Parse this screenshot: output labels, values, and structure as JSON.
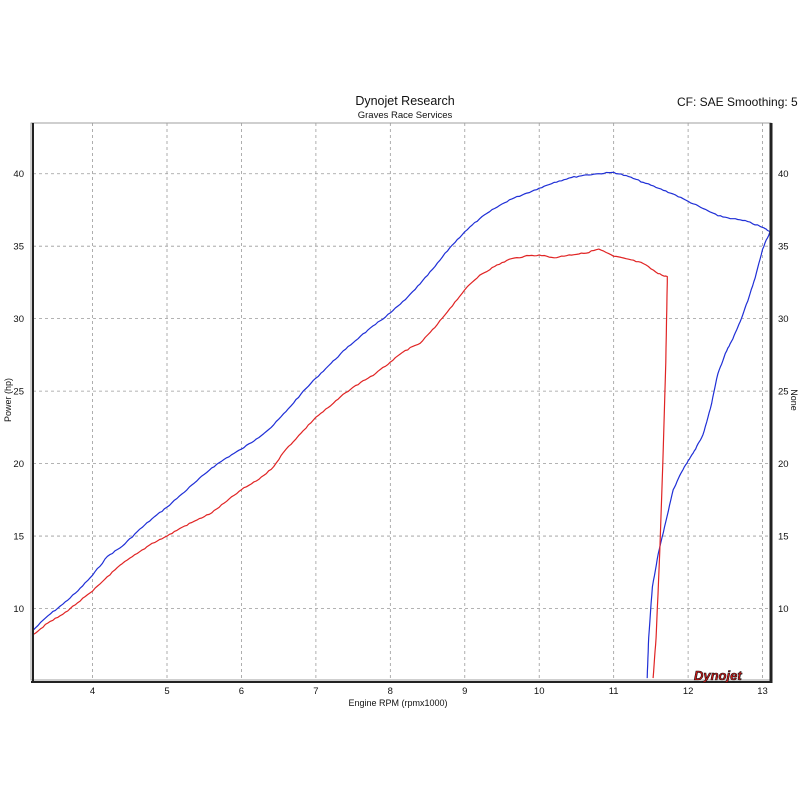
{
  "header": {
    "title": "Dynojet Research",
    "subtitle": "Graves Race Services",
    "settings": "CF: SAE Smoothing: 5"
  },
  "logo": {
    "text": "Dynojet"
  },
  "chart_data": {
    "type": "line",
    "title": "Dynojet Research",
    "subtitle": "Graves Race Services",
    "xlabel": "Engine RPM (rpmx1000)",
    "ylabel": "Power (hp)",
    "ylabel_right": "None",
    "xlim": [
      3.2,
      13.1
    ],
    "ylim": [
      5,
      43.5
    ],
    "x_ticks": [
      4,
      5,
      6,
      7,
      8,
      9,
      10,
      11,
      12,
      13
    ],
    "y_ticks": [
      10,
      15,
      20,
      25,
      30,
      35,
      40
    ],
    "grid": true,
    "colors": {
      "blue": "#1f2fd6",
      "red": "#e02424"
    },
    "series": [
      {
        "color": "#1f2fd6",
        "points": [
          [
            3.2,
            8.5
          ],
          [
            3.4,
            9.5
          ],
          [
            3.6,
            10.3
          ],
          [
            3.8,
            11.2
          ],
          [
            4.0,
            12.3
          ],
          [
            4.2,
            13.6
          ],
          [
            4.4,
            14.3
          ],
          [
            4.6,
            15.3
          ],
          [
            4.8,
            16.2
          ],
          [
            5.0,
            17.0
          ],
          [
            5.2,
            17.9
          ],
          [
            5.4,
            18.8
          ],
          [
            5.6,
            19.7
          ],
          [
            5.8,
            20.4
          ],
          [
            6.0,
            21.0
          ],
          [
            6.2,
            21.7
          ],
          [
            6.4,
            22.5
          ],
          [
            6.6,
            23.6
          ],
          [
            6.8,
            24.8
          ],
          [
            7.0,
            25.9
          ],
          [
            7.2,
            26.9
          ],
          [
            7.4,
            27.9
          ],
          [
            7.6,
            28.8
          ],
          [
            7.8,
            29.6
          ],
          [
            8.0,
            30.4
          ],
          [
            8.2,
            31.3
          ],
          [
            8.4,
            32.4
          ],
          [
            8.6,
            33.6
          ],
          [
            8.8,
            34.9
          ],
          [
            9.0,
            36.0
          ],
          [
            9.2,
            36.9
          ],
          [
            9.4,
            37.6
          ],
          [
            9.6,
            38.2
          ],
          [
            9.8,
            38.6
          ],
          [
            10.0,
            39.0
          ],
          [
            10.2,
            39.4
          ],
          [
            10.4,
            39.7
          ],
          [
            10.6,
            39.9
          ],
          [
            10.8,
            40.0
          ],
          [
            11.0,
            40.1
          ],
          [
            11.2,
            39.8
          ],
          [
            11.4,
            39.4
          ],
          [
            11.6,
            39.0
          ],
          [
            11.8,
            38.6
          ],
          [
            12.0,
            38.1
          ],
          [
            12.2,
            37.6
          ],
          [
            12.4,
            37.1
          ],
          [
            12.6,
            36.9
          ],
          [
            12.8,
            36.7
          ],
          [
            13.0,
            36.3
          ],
          [
            13.1,
            36.0
          ]
        ]
      },
      {
        "color": "#1f2fd6",
        "points": [
          [
            11.45,
            5.2
          ],
          [
            11.47,
            8.0
          ],
          [
            11.52,
            11.5
          ],
          [
            11.6,
            13.8
          ],
          [
            11.7,
            16.0
          ],
          [
            11.8,
            18.2
          ],
          [
            11.9,
            19.3
          ],
          [
            12.0,
            20.2
          ],
          [
            12.1,
            21.0
          ],
          [
            12.2,
            22.0
          ],
          [
            12.3,
            23.8
          ],
          [
            12.4,
            26.2
          ],
          [
            12.5,
            27.6
          ],
          [
            12.6,
            28.6
          ],
          [
            12.7,
            29.8
          ],
          [
            12.8,
            31.2
          ],
          [
            12.9,
            32.8
          ],
          [
            13.0,
            34.8
          ],
          [
            13.1,
            36.0
          ]
        ]
      },
      {
        "color": "#e02424",
        "points": [
          [
            3.2,
            8.2
          ],
          [
            3.4,
            9.0
          ],
          [
            3.6,
            9.6
          ],
          [
            3.8,
            10.4
          ],
          [
            4.0,
            11.2
          ],
          [
            4.2,
            12.2
          ],
          [
            4.4,
            13.1
          ],
          [
            4.6,
            13.8
          ],
          [
            4.8,
            14.5
          ],
          [
            5.0,
            15.0
          ],
          [
            5.2,
            15.6
          ],
          [
            5.4,
            16.1
          ],
          [
            5.6,
            16.6
          ],
          [
            5.8,
            17.4
          ],
          [
            6.0,
            18.2
          ],
          [
            6.2,
            18.8
          ],
          [
            6.4,
            19.6
          ],
          [
            6.6,
            21.0
          ],
          [
            6.8,
            22.1
          ],
          [
            7.0,
            23.2
          ],
          [
            7.2,
            24.0
          ],
          [
            7.4,
            24.9
          ],
          [
            7.6,
            25.6
          ],
          [
            7.8,
            26.2
          ],
          [
            8.0,
            27.0
          ],
          [
            8.2,
            27.8
          ],
          [
            8.4,
            28.3
          ],
          [
            8.6,
            29.4
          ],
          [
            8.8,
            30.7
          ],
          [
            9.0,
            32.0
          ],
          [
            9.2,
            33.0
          ],
          [
            9.4,
            33.6
          ],
          [
            9.6,
            34.1
          ],
          [
            9.8,
            34.3
          ],
          [
            10.0,
            34.4
          ],
          [
            10.2,
            34.2
          ],
          [
            10.4,
            34.4
          ],
          [
            10.6,
            34.5
          ],
          [
            10.8,
            34.8
          ],
          [
            11.0,
            34.3
          ],
          [
            11.2,
            34.1
          ],
          [
            11.4,
            33.8
          ],
          [
            11.6,
            33.1
          ],
          [
            11.72,
            32.9
          ],
          [
            11.72,
            32.5
          ],
          [
            11.7,
            27.0
          ],
          [
            11.66,
            20.0
          ],
          [
            11.62,
            14.0
          ],
          [
            11.57,
            8.0
          ],
          [
            11.53,
            5.2
          ]
        ]
      }
    ]
  }
}
